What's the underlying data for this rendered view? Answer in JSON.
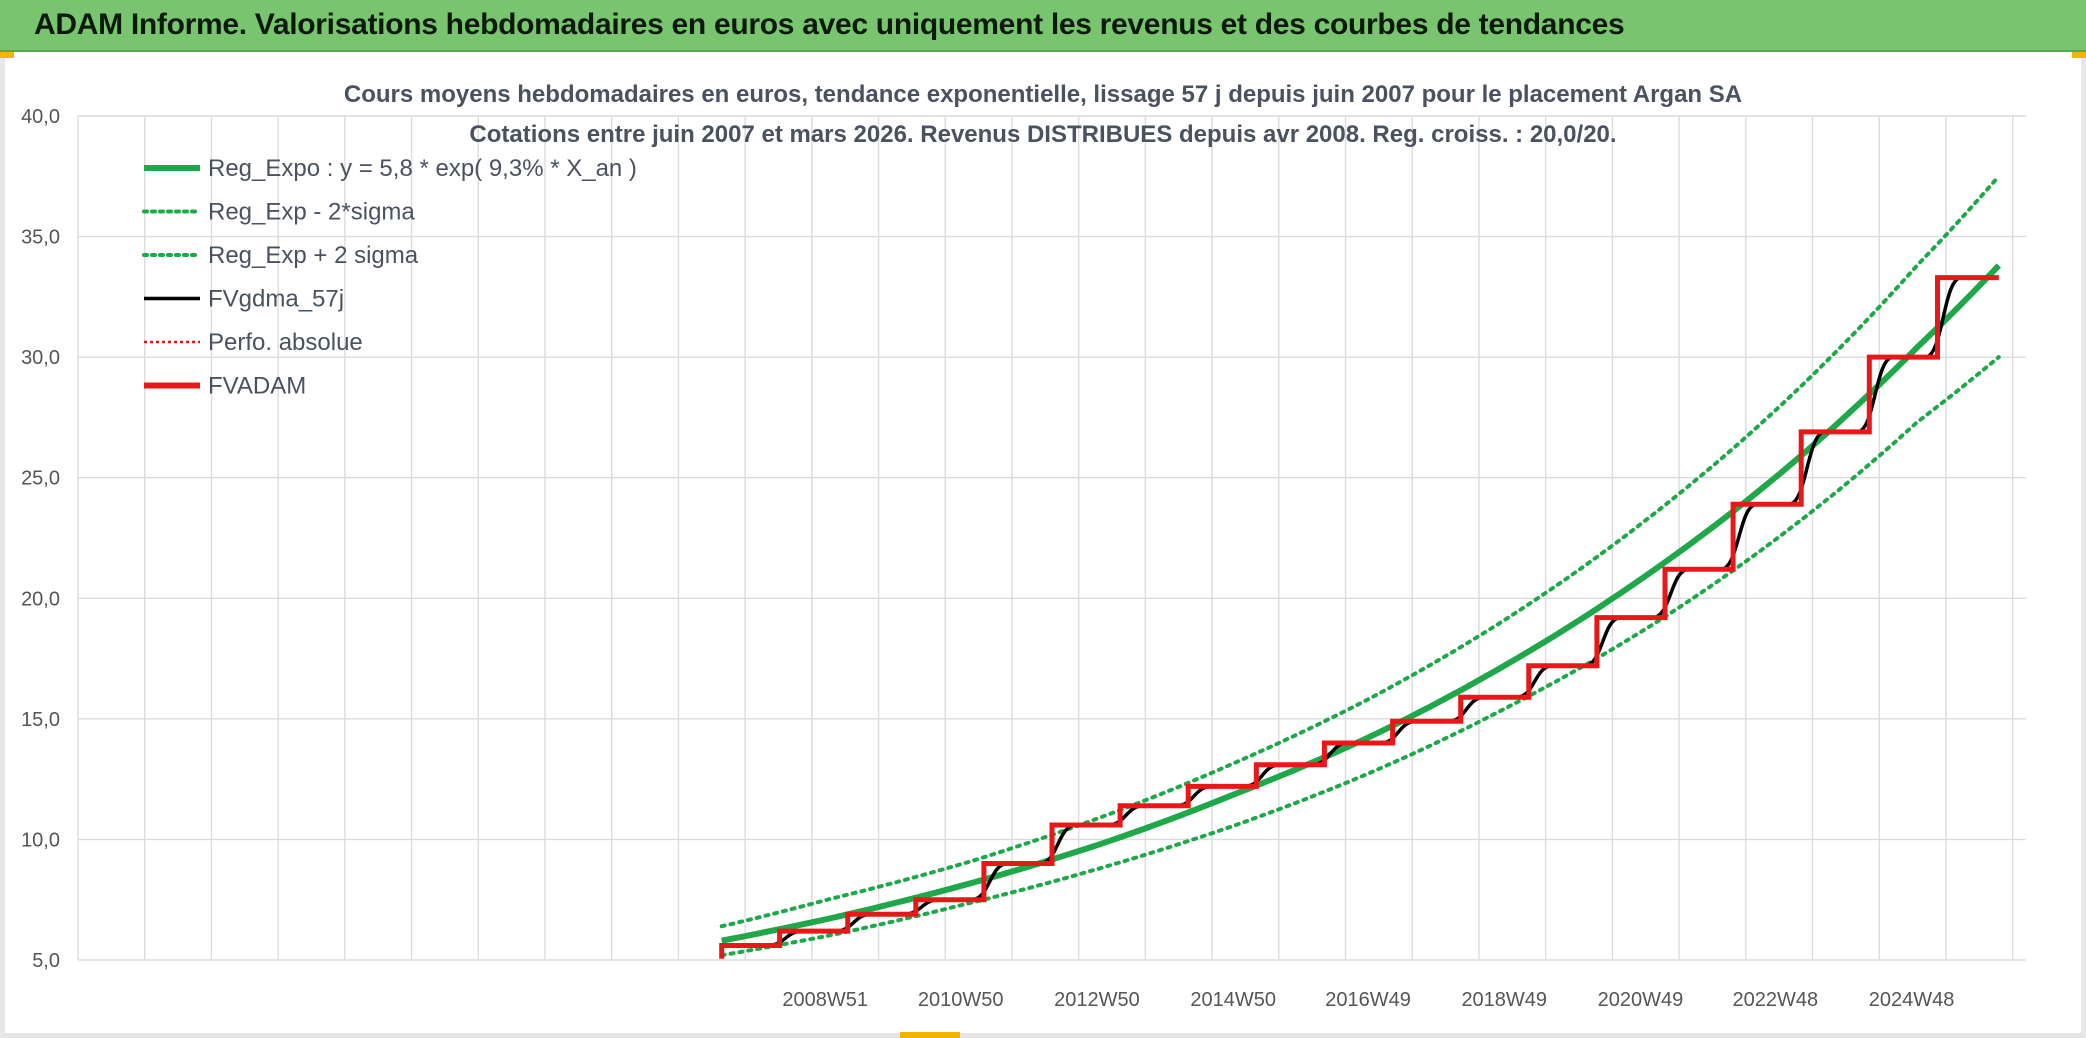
{
  "header": {
    "title": "ADAM Informe. Valorisations hebdomadaires en euros avec uniquement les revenus et des courbes de tendances"
  },
  "colors": {
    "banner": "#79c56f",
    "regression": "#1fa84a",
    "sigma_band": "#1fa84a",
    "smoothed": "#000000",
    "absolute_perf": "#d81818",
    "fvadam": "#e81818",
    "grid": "#dcdcdc",
    "accent_corner": "#f2b600"
  },
  "chart_data": {
    "type": "line",
    "title_line1": "Cours moyens hebdomadaires en euros, tendance exponentielle, lissage 57 j depuis juin 2007 pour le placement Argan SA",
    "title_line2": "Cotations entre juin 2007 et mars 2026. Revenus DISTRIBUES depuis avr 2008. Reg. croiss. : 20,0/20.",
    "xlabel": "",
    "ylabel": "",
    "ylim": [
      5,
      40
    ],
    "yticks": [
      "5,0",
      "10,0",
      "15,0",
      "20,0",
      "25,0",
      "30,0",
      "35,0",
      "40,0"
    ],
    "x_tick_labels": [
      "2008W51",
      "2010W50",
      "2012W50",
      "2014W50",
      "2016W49",
      "2018W49",
      "2020W49",
      "2022W48",
      "2024W48"
    ],
    "grid": true,
    "legend_position": "top-left",
    "legend": [
      {
        "key": "reg",
        "label": "Reg_Expo : y = 5,8 * exp( 9,3% *  X_an )",
        "style": "solid-thick",
        "color": "#1fa84a"
      },
      {
        "key": "low",
        "label": "Reg_Exp - 2*sigma",
        "style": "dotted",
        "color": "#1fa84a"
      },
      {
        "key": "high",
        "label": "Reg_Exp + 2 sigma",
        "style": "dotted",
        "color": "#1fa84a"
      },
      {
        "key": "smooth",
        "label": "FVgdma_57j",
        "style": "solid",
        "color": "#000000"
      },
      {
        "key": "perf",
        "label": "Perfo. absolue",
        "style": "dotted-thin",
        "color": "#d81818"
      },
      {
        "key": "fvadam",
        "label": "FVADAM",
        "style": "solid-thick",
        "color": "#e81818"
      }
    ],
    "series": [
      {
        "name": "Reg_Expo : y = 5,8 * exp( 9,3% *  X_an )",
        "x": [
          2007.45,
          2009,
          2011,
          2013,
          2015,
          2017,
          2019,
          2021,
          2023,
          2025,
          2026.2
        ],
        "values": [
          5.8,
          6.7,
          8.1,
          9.8,
          11.9,
          14.3,
          17.3,
          20.9,
          25.2,
          30.4,
          33.8
        ]
      },
      {
        "name": "Reg_Exp - 2*sigma",
        "x": [
          2007.45,
          2009,
          2011,
          2013,
          2015,
          2017,
          2019,
          2021,
          2023,
          2025,
          2026.2
        ],
        "values": [
          5.2,
          6.0,
          7.3,
          8.8,
          10.6,
          12.8,
          15.5,
          18.7,
          22.6,
          27.3,
          30.0
        ]
      },
      {
        "name": "Reg_Exp + 2 sigma",
        "x": [
          2007.45,
          2009,
          2011,
          2013,
          2015,
          2017,
          2019,
          2021,
          2023,
          2025,
          2026.2
        ],
        "values": [
          6.4,
          7.5,
          9.0,
          10.9,
          13.2,
          15.9,
          19.2,
          23.2,
          28.0,
          33.8,
          37.5
        ]
      },
      {
        "name": "FVADAM",
        "step_x": [
          2007.45,
          2008.3,
          2009.3,
          2010.3,
          2011.3,
          2012.3,
          2013.3,
          2014.3,
          2015.3,
          2016.3,
          2017.3,
          2018.3,
          2019.3,
          2020.3,
          2021.3,
          2022.3,
          2023.3,
          2024.3,
          2025.3,
          2026.2
        ],
        "step_values": [
          5.6,
          6.2,
          6.9,
          7.5,
          9.0,
          10.6,
          11.4,
          12.2,
          13.1,
          14.0,
          14.9,
          15.9,
          17.2,
          19.2,
          21.2,
          23.9,
          26.9,
          30.0,
          33.3
        ]
      },
      {
        "name": "FVgdma_57j",
        "note_free": true,
        "step_x": [
          2007.45,
          2008.3,
          2009.3,
          2010.3,
          2011.3,
          2012.3,
          2013.3,
          2014.3,
          2015.3,
          2016.3,
          2017.3,
          2018.3,
          2019.3,
          2020.3,
          2021.3,
          2022.3,
          2023.3,
          2024.3,
          2025.3,
          2026.2
        ],
        "step_values": [
          5.6,
          6.2,
          6.9,
          7.5,
          9.0,
          10.6,
          11.4,
          12.2,
          13.1,
          14.0,
          14.9,
          15.9,
          17.2,
          19.2,
          21.2,
          23.9,
          26.9,
          30.0,
          33.3
        ]
      }
    ]
  }
}
